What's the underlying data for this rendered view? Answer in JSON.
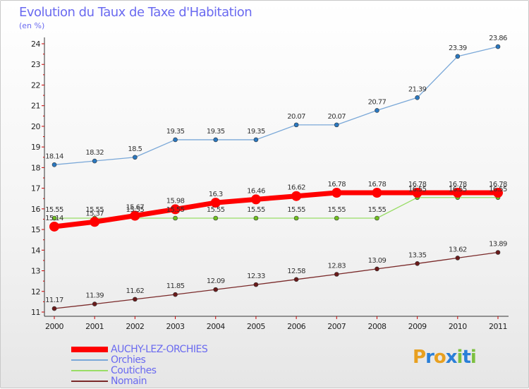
{
  "title": "Evolution du Taux de Taxe d'Habitation",
  "unit_label": "(en %)",
  "logo": {
    "letters": [
      "P",
      "r",
      "o",
      "x",
      "i",
      "t",
      "i"
    ],
    "colors": [
      "#e8a020",
      "#2a7fd8",
      "#e8a020",
      "#2a7fd8",
      "#7cc040",
      "#2a7fd8",
      "#7cc040"
    ]
  },
  "chart_data": {
    "type": "line",
    "x": [
      "2000",
      "2001",
      "2002",
      "2003",
      "2004",
      "2005",
      "2006",
      "2007",
      "2008",
      "2009",
      "2010",
      "2011"
    ],
    "ylim": [
      11,
      24
    ],
    "yticks": [
      11,
      12,
      13,
      14,
      15,
      16,
      17,
      18,
      19,
      20,
      21,
      22,
      23,
      24
    ],
    "grid": false,
    "legend_position": "bottom-left",
    "series": [
      {
        "name": "AUCHY-LEZ-ORCHIES",
        "color": "#ff0000",
        "width": 7,
        "marker": 7,
        "values": [
          15.14,
          15.37,
          15.67,
          15.98,
          16.3,
          16.46,
          16.62,
          16.78,
          16.78,
          16.78,
          16.78,
          16.78
        ],
        "labels": [
          "15.14",
          "15.37",
          "15.67",
          "15.98",
          "16.3",
          "16.46",
          "16.62",
          "16.78",
          "16.78",
          "16.78",
          "16.78",
          "16.78"
        ]
      },
      {
        "name": "Orchies",
        "color": "#7aa8d8",
        "width": 1.3,
        "marker": 3,
        "values": [
          18.14,
          18.32,
          18.5,
          19.35,
          19.35,
          19.35,
          20.07,
          20.07,
          20.77,
          21.39,
          23.39,
          23.86
        ],
        "labels": [
          "18.14",
          "18.32",
          "18.5",
          "19.35",
          "19.35",
          "19.35",
          "20.07",
          "20.07",
          "20.77",
          "21.39",
          "23.39",
          "23.86"
        ]
      },
      {
        "name": "Coutiches",
        "color": "#99dd66",
        "width": 1.3,
        "marker": 3,
        "values": [
          15.55,
          15.55,
          15.55,
          15.55,
          15.55,
          15.55,
          15.55,
          15.55,
          15.55,
          16.55,
          16.55,
          16.55
        ],
        "labels": [
          "15.55",
          "15.55",
          "15.55",
          "15.55",
          "15.55",
          "15.55",
          "15.55",
          "15.55",
          "15.55",
          "16.55",
          "16.55",
          "16.55"
        ]
      },
      {
        "name": "Nomain",
        "color": "#7a2a2a",
        "width": 1.3,
        "marker": 3,
        "values": [
          11.17,
          11.39,
          11.62,
          11.85,
          12.09,
          12.33,
          12.58,
          12.83,
          13.09,
          13.35,
          13.62,
          13.89
        ],
        "labels": [
          "11.17",
          "11.39",
          "11.62",
          "11.85",
          "12.09",
          "12.33",
          "12.58",
          "12.83",
          "13.09",
          "13.35",
          "13.62",
          "13.89"
        ]
      }
    ]
  }
}
